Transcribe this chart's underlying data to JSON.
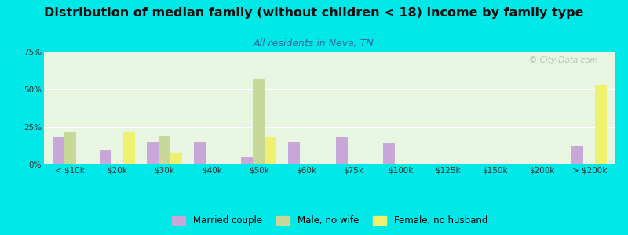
{
  "categories": [
    "< $10k",
    "$20k",
    "$30k",
    "$40k",
    "$50k",
    "$60k",
    "$75k",
    "$100k",
    "$125k",
    "$150k",
    "$200k",
    "> $200k"
  ],
  "married_couple": [
    18,
    10,
    15,
    15,
    5,
    15,
    18,
    14,
    0,
    0,
    0,
    12
  ],
  "male_no_wife": [
    22,
    0,
    19,
    0,
    57,
    0,
    0,
    0,
    0,
    0,
    0,
    0
  ],
  "female_no_husband": [
    0,
    22,
    8,
    0,
    18,
    0,
    0,
    0,
    0,
    0,
    0,
    53
  ],
  "married_color": "#c8a8d8",
  "male_color": "#c8d898",
  "female_color": "#f0f070",
  "title": "Distribution of median family (without children < 18) income by family type",
  "subtitle": "All residents in Neva, TN",
  "ylim": [
    0,
    75
  ],
  "yticks": [
    0,
    25,
    50,
    75
  ],
  "ytick_labels": [
    "0%",
    "25%",
    "50%",
    "75%"
  ],
  "legend_labels": [
    "Married couple",
    "Male, no wife",
    "Female, no husband"
  ],
  "background_color": "#00e8e8",
  "plot_bg": "#e8f5e0",
  "watermark": "© City-Data.com",
  "title_fontsize": 11.5,
  "subtitle_fontsize": 9,
  "tick_fontsize": 7.5,
  "bar_width": 0.25
}
